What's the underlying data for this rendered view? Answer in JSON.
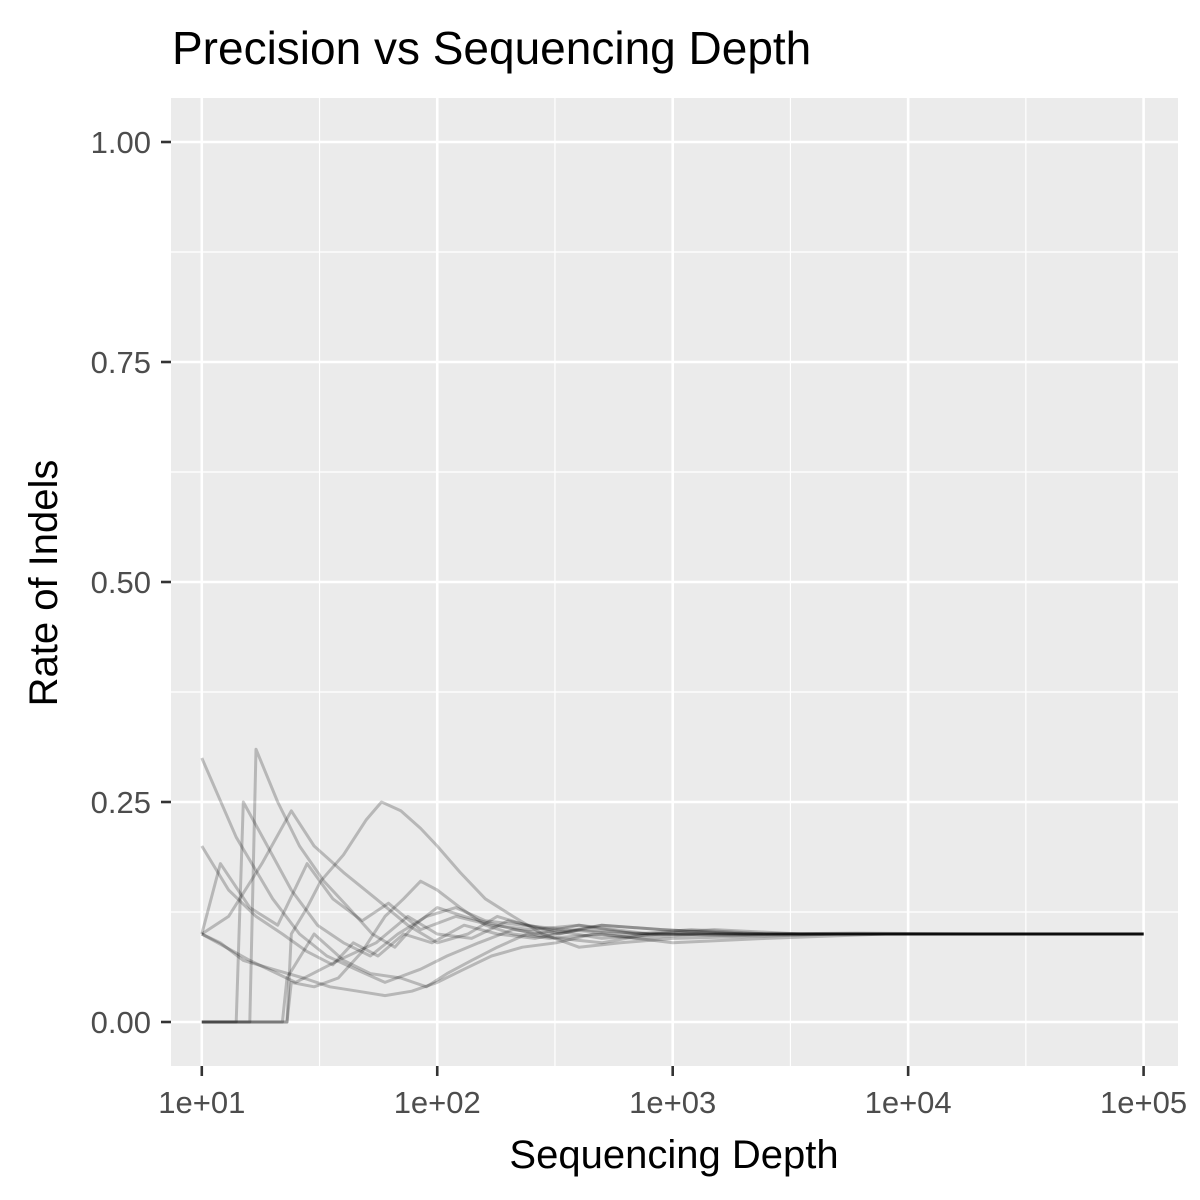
{
  "chart_data": {
    "type": "line",
    "title": "Precision vs Sequencing Depth",
    "xlabel": "Sequencing Depth",
    "ylabel": "Rate of Indels",
    "x_scale": "log10",
    "xlim": [
      7.4,
      140000
    ],
    "ylim": [
      -0.05,
      1.05
    ],
    "x_ticks": [
      {
        "value": 10,
        "label": "1e+01"
      },
      {
        "value": 100,
        "label": "1e+02"
      },
      {
        "value": 1000,
        "label": "1e+03"
      },
      {
        "value": 10000,
        "label": "1e+04"
      },
      {
        "value": 100000,
        "label": "1e+05"
      }
    ],
    "y_ticks": [
      {
        "value": 0,
        "label": "0.00"
      },
      {
        "value": 0.25,
        "label": "0.25"
      },
      {
        "value": 0.5,
        "label": "0.50"
      },
      {
        "value": 0.75,
        "label": "0.75"
      },
      {
        "value": 1,
        "label": "1.00"
      }
    ],
    "grid": true,
    "line_color": "#000000",
    "line_opacity": 0.22,
    "panel_background": "#ebebeb",
    "grid_color": "#ffffff",
    "series": [
      {
        "points": [
          [
            10,
            0.1
          ],
          [
            12,
            0.18
          ],
          [
            16,
            0.13
          ],
          [
            21,
            0.11
          ],
          [
            28,
            0.18
          ],
          [
            36,
            0.14
          ],
          [
            48,
            0.115
          ],
          [
            62,
            0.135
          ],
          [
            85,
            0.105
          ],
          [
            120,
            0.12
          ],
          [
            170,
            0.11
          ],
          [
            250,
            0.105
          ],
          [
            400,
            0.11
          ],
          [
            700,
            0.1
          ],
          [
            1200,
            0.105
          ],
          [
            2500,
            0.1
          ],
          [
            6000,
            0.101
          ],
          [
            20000,
            0.1
          ],
          [
            100000,
            0.1
          ]
        ]
      },
      {
        "points": [
          [
            10,
            0.1
          ],
          [
            16,
            0.07
          ],
          [
            25,
            0.045
          ],
          [
            38,
            0.07
          ],
          [
            55,
            0.09
          ],
          [
            75,
            0.12
          ],
          [
            100,
            0.1
          ],
          [
            140,
            0.095
          ],
          [
            200,
            0.115
          ],
          [
            300,
            0.105
          ],
          [
            500,
            0.095
          ],
          [
            900,
            0.1
          ],
          [
            1800,
            0.098
          ],
          [
            4000,
            0.1
          ],
          [
            15000,
            0.1
          ],
          [
            100000,
            0.1
          ]
        ]
      },
      {
        "points": [
          [
            10,
            0.2
          ],
          [
            13,
            0.15
          ],
          [
            17,
            0.12
          ],
          [
            22,
            0.1
          ],
          [
            28,
            0.08
          ],
          [
            36,
            0.065
          ],
          [
            44,
            0.09
          ],
          [
            56,
            0.075
          ],
          [
            72,
            0.1
          ],
          [
            95,
            0.09
          ],
          [
            130,
            0.11
          ],
          [
            180,
            0.1
          ],
          [
            260,
            0.095
          ],
          [
            400,
            0.105
          ],
          [
            800,
            0.1
          ],
          [
            2000,
            0.1
          ],
          [
            8000,
            0.1
          ],
          [
            100000,
            0.1
          ]
        ]
      },
      {
        "points": [
          [
            10,
            0.3
          ],
          [
            14,
            0.21
          ],
          [
            20,
            0.14
          ],
          [
            26,
            0.1
          ],
          [
            34,
            0.075
          ],
          [
            45,
            0.06
          ],
          [
            60,
            0.045
          ],
          [
            85,
            0.06
          ],
          [
            110,
            0.075
          ],
          [
            150,
            0.09
          ],
          [
            210,
            0.105
          ],
          [
            300,
            0.1
          ],
          [
            500,
            0.11
          ],
          [
            900,
            0.105
          ],
          [
            2000,
            0.1
          ],
          [
            6000,
            0.1
          ],
          [
            30000,
            0.1
          ],
          [
            100000,
            0.1
          ]
        ]
      },
      {
        "points": [
          [
            10,
            0
          ],
          [
            14,
            0
          ],
          [
            15,
            0.25
          ],
          [
            19,
            0.2
          ],
          [
            24,
            0.15
          ],
          [
            31,
            0.11
          ],
          [
            40,
            0.09
          ],
          [
            52,
            0.075
          ],
          [
            68,
            0.1
          ],
          [
            90,
            0.12
          ],
          [
            120,
            0.13
          ],
          [
            160,
            0.115
          ],
          [
            230,
            0.11
          ],
          [
            350,
            0.105
          ],
          [
            600,
            0.1
          ],
          [
            1300,
            0.1
          ],
          [
            5000,
            0.1
          ],
          [
            100000,
            0.1
          ]
        ]
      },
      {
        "points": [
          [
            10,
            0
          ],
          [
            16,
            0
          ],
          [
            17,
            0.31
          ],
          [
            21,
            0.25
          ],
          [
            26,
            0.2
          ],
          [
            33,
            0.16
          ],
          [
            42,
            0.13
          ],
          [
            53,
            0.1
          ],
          [
            66,
            0.085
          ],
          [
            80,
            0.11
          ],
          [
            100,
            0.13
          ],
          [
            130,
            0.12
          ],
          [
            180,
            0.11
          ],
          [
            260,
            0.1
          ],
          [
            400,
            0.11
          ],
          [
            800,
            0.1
          ],
          [
            2500,
            0.1
          ],
          [
            100000,
            0.1
          ]
        ]
      },
      {
        "points": [
          [
            10,
            0
          ],
          [
            23,
            0
          ],
          [
            24,
            0.1
          ],
          [
            28,
            0.13
          ],
          [
            32,
            0.16
          ],
          [
            40,
            0.19
          ],
          [
            50,
            0.23
          ],
          [
            58,
            0.25
          ],
          [
            70,
            0.24
          ],
          [
            85,
            0.22
          ],
          [
            100,
            0.2
          ],
          [
            125,
            0.17
          ],
          [
            160,
            0.14
          ],
          [
            210,
            0.12
          ],
          [
            280,
            0.1
          ],
          [
            400,
            0.085
          ],
          [
            600,
            0.09
          ],
          [
            1000,
            0.095
          ],
          [
            2000,
            0.097
          ],
          [
            5000,
            0.1
          ],
          [
            20000,
            0.1
          ],
          [
            100000,
            0.1
          ]
        ]
      },
      {
        "points": [
          [
            10,
            0
          ],
          [
            23,
            0
          ],
          [
            24,
            0.045
          ],
          [
            30,
            0.04
          ],
          [
            38,
            0.05
          ],
          [
            48,
            0.08
          ],
          [
            60,
            0.12
          ],
          [
            72,
            0.14
          ],
          [
            85,
            0.16
          ],
          [
            100,
            0.15
          ],
          [
            125,
            0.13
          ],
          [
            160,
            0.11
          ],
          [
            210,
            0.1
          ],
          [
            300,
            0.095
          ],
          [
            500,
            0.1
          ],
          [
            1000,
            0.09
          ],
          [
            2500,
            0.095
          ],
          [
            8000,
            0.1
          ],
          [
            100000,
            0.1
          ]
        ]
      },
      {
        "points": [
          [
            10,
            0
          ],
          [
            22,
            0
          ],
          [
            23,
            0.05
          ],
          [
            30,
            0.1
          ],
          [
            40,
            0.07
          ],
          [
            52,
            0.055
          ],
          [
            70,
            0.05
          ],
          [
            90,
            0.04
          ],
          [
            110,
            0.055
          ],
          [
            140,
            0.07
          ],
          [
            180,
            0.085
          ],
          [
            240,
            0.1
          ],
          [
            330,
            0.095
          ],
          [
            500,
            0.09
          ],
          [
            800,
            0.1
          ],
          [
            1500,
            0.105
          ],
          [
            3500,
            0.1
          ],
          [
            12000,
            0.1
          ],
          [
            100000,
            0.1
          ]
        ]
      },
      {
        "points": [
          [
            10,
            0.1
          ],
          [
            13,
            0.12
          ],
          [
            18,
            0.18
          ],
          [
            24,
            0.24
          ],
          [
            30,
            0.2
          ],
          [
            40,
            0.17
          ],
          [
            55,
            0.14
          ],
          [
            75,
            0.11
          ],
          [
            100,
            0.09
          ],
          [
            135,
            0.1
          ],
          [
            180,
            0.12
          ],
          [
            240,
            0.11
          ],
          [
            330,
            0.1
          ],
          [
            500,
            0.11
          ],
          [
            900,
            0.105
          ],
          [
            2000,
            0.1
          ],
          [
            7000,
            0.1
          ],
          [
            100000,
            0.1
          ]
        ]
      },
      {
        "points": [
          [
            10,
            0.1
          ],
          [
            12,
            0.09
          ],
          [
            15,
            0.07
          ],
          [
            20,
            0.06
          ],
          [
            27,
            0.05
          ],
          [
            35,
            0.04
          ],
          [
            46,
            0.035
          ],
          [
            60,
            0.03
          ],
          [
            78,
            0.035
          ],
          [
            100,
            0.045
          ],
          [
            130,
            0.06
          ],
          [
            170,
            0.075
          ],
          [
            230,
            0.085
          ],
          [
            320,
            0.09
          ],
          [
            460,
            0.1
          ],
          [
            700,
            0.095
          ],
          [
            1300,
            0.1
          ],
          [
            3000,
            0.1
          ],
          [
            10000,
            0.1
          ],
          [
            100000,
            0.1
          ]
        ]
      }
    ]
  }
}
